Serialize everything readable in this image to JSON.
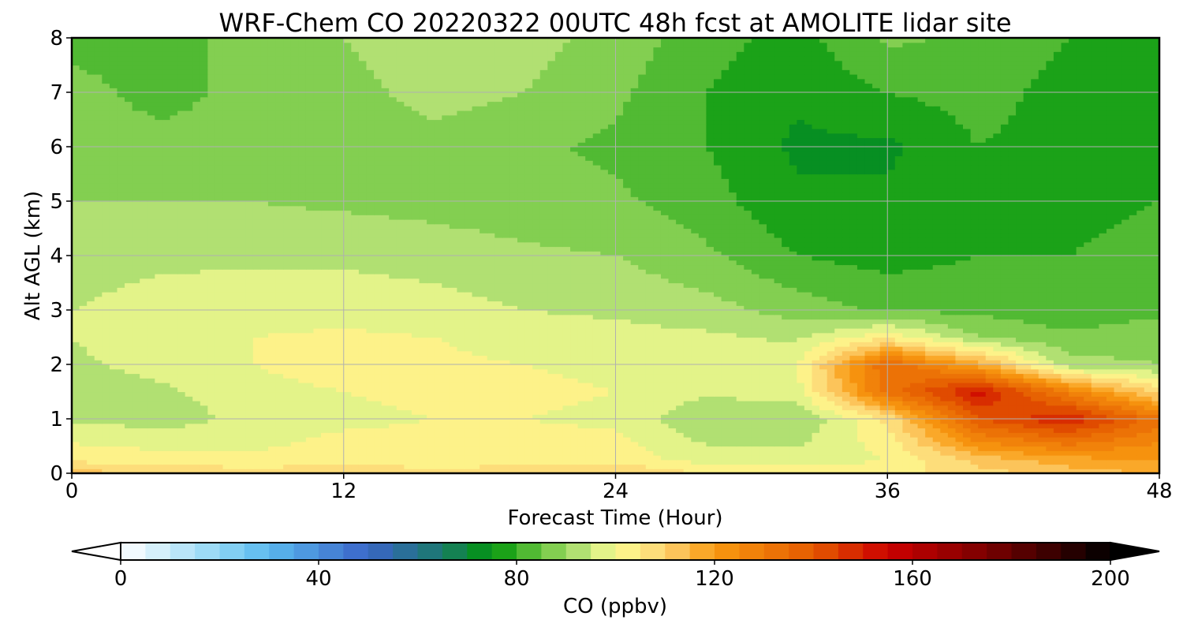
{
  "chart_data": {
    "type": "heatmap",
    "title": "WRF-Chem CO  20220322 00UTC 48h fcst at AMOLITE lidar site",
    "xlabel": "Forecast Time (Hour)",
    "ylabel": "Alt AGL (km)",
    "xlim": [
      0,
      48
    ],
    "ylim": [
      0,
      8
    ],
    "x_ticks": [
      "0",
      "12",
      "24",
      "36",
      "48"
    ],
    "y_ticks": [
      "0",
      "1",
      "2",
      "3",
      "4",
      "5",
      "6",
      "7",
      "8"
    ],
    "grid": true,
    "x": [
      0,
      4,
      8,
      12,
      16,
      20,
      24,
      28,
      32,
      36,
      40,
      44,
      48
    ],
    "y": [
      0,
      0.25,
      1,
      1.5,
      2,
      2.5,
      3,
      4,
      5,
      6,
      7,
      8
    ],
    "z": [
      [
        112,
        110,
        108,
        109,
        107,
        108,
        110,
        105,
        104,
        103,
        108,
        112,
        116
      ],
      [
        104,
        102,
        101,
        103,
        102,
        103,
        103,
        98,
        97,
        100,
        112,
        118,
        120
      ],
      [
        94,
        93,
        96,
        99,
        100,
        100,
        99,
        90,
        90,
        106,
        140,
        150,
        132
      ],
      [
        92,
        94,
        98,
        100,
        101,
        101,
        100,
        96,
        98,
        132,
        152,
        128,
        108
      ],
      [
        94,
        97,
        100,
        103,
        101,
        100,
        99,
        98,
        100,
        135,
        118,
        92,
        90
      ],
      [
        95,
        98,
        100,
        101,
        100,
        98,
        97,
        96,
        94,
        104,
        90,
        86,
        88
      ],
      [
        95,
        97,
        98,
        98,
        97,
        95,
        94,
        92,
        88,
        84,
        84,
        82,
        84
      ],
      [
        93,
        94,
        94,
        94,
        93,
        91,
        90,
        86,
        80,
        78,
        80,
        80,
        82
      ],
      [
        90,
        90,
        90,
        89,
        88,
        87,
        86,
        82,
        76,
        76,
        78,
        78,
        80
      ],
      [
        86,
        86,
        86,
        86,
        88,
        86,
        84,
        80,
        74,
        74,
        80,
        78,
        78
      ],
      [
        86,
        84,
        86,
        88,
        92,
        90,
        86,
        80,
        76,
        80,
        82,
        78,
        78
      ],
      [
        84,
        84,
        86,
        90,
        94,
        92,
        88,
        82,
        78,
        86,
        84,
        80,
        80
      ]
    ],
    "colorbar": {
      "label": "CO  (ppbv)",
      "min": 0,
      "max": 200,
      "ticks": [
        "0",
        "40",
        "80",
        "120",
        "160",
        "200"
      ],
      "extend": "both",
      "stops": [
        [
          0,
          "#ffffff"
        ],
        [
          20,
          "#8fd6f5"
        ],
        [
          30,
          "#5ab8ee"
        ],
        [
          50,
          "#3a64c8"
        ],
        [
          65,
          "#1a7a6a"
        ],
        [
          75,
          "#00960a"
        ],
        [
          85,
          "#6cc640"
        ],
        [
          95,
          "#c8e882"
        ],
        [
          100,
          "#fdfd90"
        ],
        [
          110,
          "#fdd272"
        ],
        [
          120,
          "#f99a10"
        ],
        [
          140,
          "#e45a00"
        ],
        [
          155,
          "#cc0000"
        ],
        [
          175,
          "#7a0000"
        ],
        [
          200,
          "#000000"
        ]
      ]
    }
  }
}
